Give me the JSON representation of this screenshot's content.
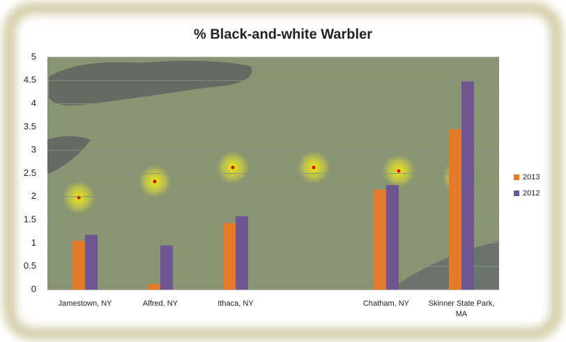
{
  "chart_data": {
    "type": "bar",
    "title": "% Black-and-white Warbler",
    "categories": [
      "Jamestown, NY",
      "Alfred, NY",
      "Ithaca, NY",
      null,
      "Chatham, NY",
      "Skinner State Park, MA"
    ],
    "series": [
      {
        "name": "2013",
        "color": "#e37a2a",
        "values": [
          1.05,
          0.12,
          1.43,
          null,
          2.15,
          3.45
        ]
      },
      {
        "name": "2012",
        "color": "#6f5591",
        "values": [
          1.18,
          0.95,
          1.58,
          null,
          2.25,
          4.48
        ]
      }
    ],
    "ylim": [
      0,
      5
    ],
    "yticks": [
      0,
      0.5,
      1,
      1.5,
      2,
      2.5,
      3,
      3.5,
      4,
      4.5,
      5
    ],
    "grid": true,
    "legend": "right"
  }
}
